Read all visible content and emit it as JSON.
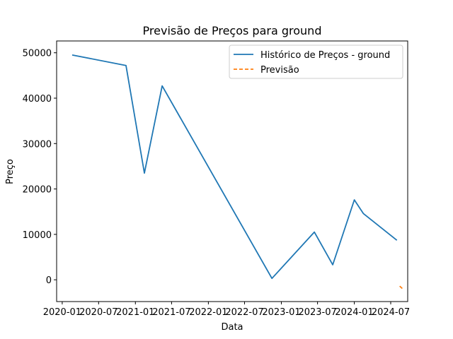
{
  "chart_data": {
    "type": "line",
    "title": "Previsão de Preços para ground",
    "xlabel": "Data",
    "ylabel": "Preço",
    "x_ticks": [
      "2020-01",
      "2020-07",
      "2021-01",
      "2021-07",
      "2022-01",
      "2022-07",
      "2023-01",
      "2023-07",
      "2024-01",
      "2024-07"
    ],
    "y_ticks": [
      "0",
      "10000",
      "20000",
      "30000",
      "40000",
      "50000"
    ],
    "ylim": [
      -4800,
      52600
    ],
    "xlim": [
      "2019-12-04",
      "2024-09-24"
    ],
    "grid": false,
    "legend_position": "top-right",
    "series": [
      {
        "name": "Histórico de Preços - ground",
        "color": "#1f77b4",
        "style": "solid",
        "x": [
          "2020-02-20",
          "2020-11-15",
          "2021-02-15",
          "2021-05-15",
          "2022-11-15",
          "2023-06-15",
          "2023-09-15",
          "2024-01-01",
          "2024-02-15",
          "2024-08-01"
        ],
        "y": [
          49500,
          47200,
          23500,
          42700,
          300,
          10500,
          3300,
          17600,
          14600,
          8700
        ]
      },
      {
        "name": "Previsão",
        "color": "#ff7f0e",
        "style": "dashed",
        "x": [
          "2024-08-15",
          "2024-09-01"
        ],
        "y": [
          -1400,
          -2100
        ]
      }
    ]
  }
}
